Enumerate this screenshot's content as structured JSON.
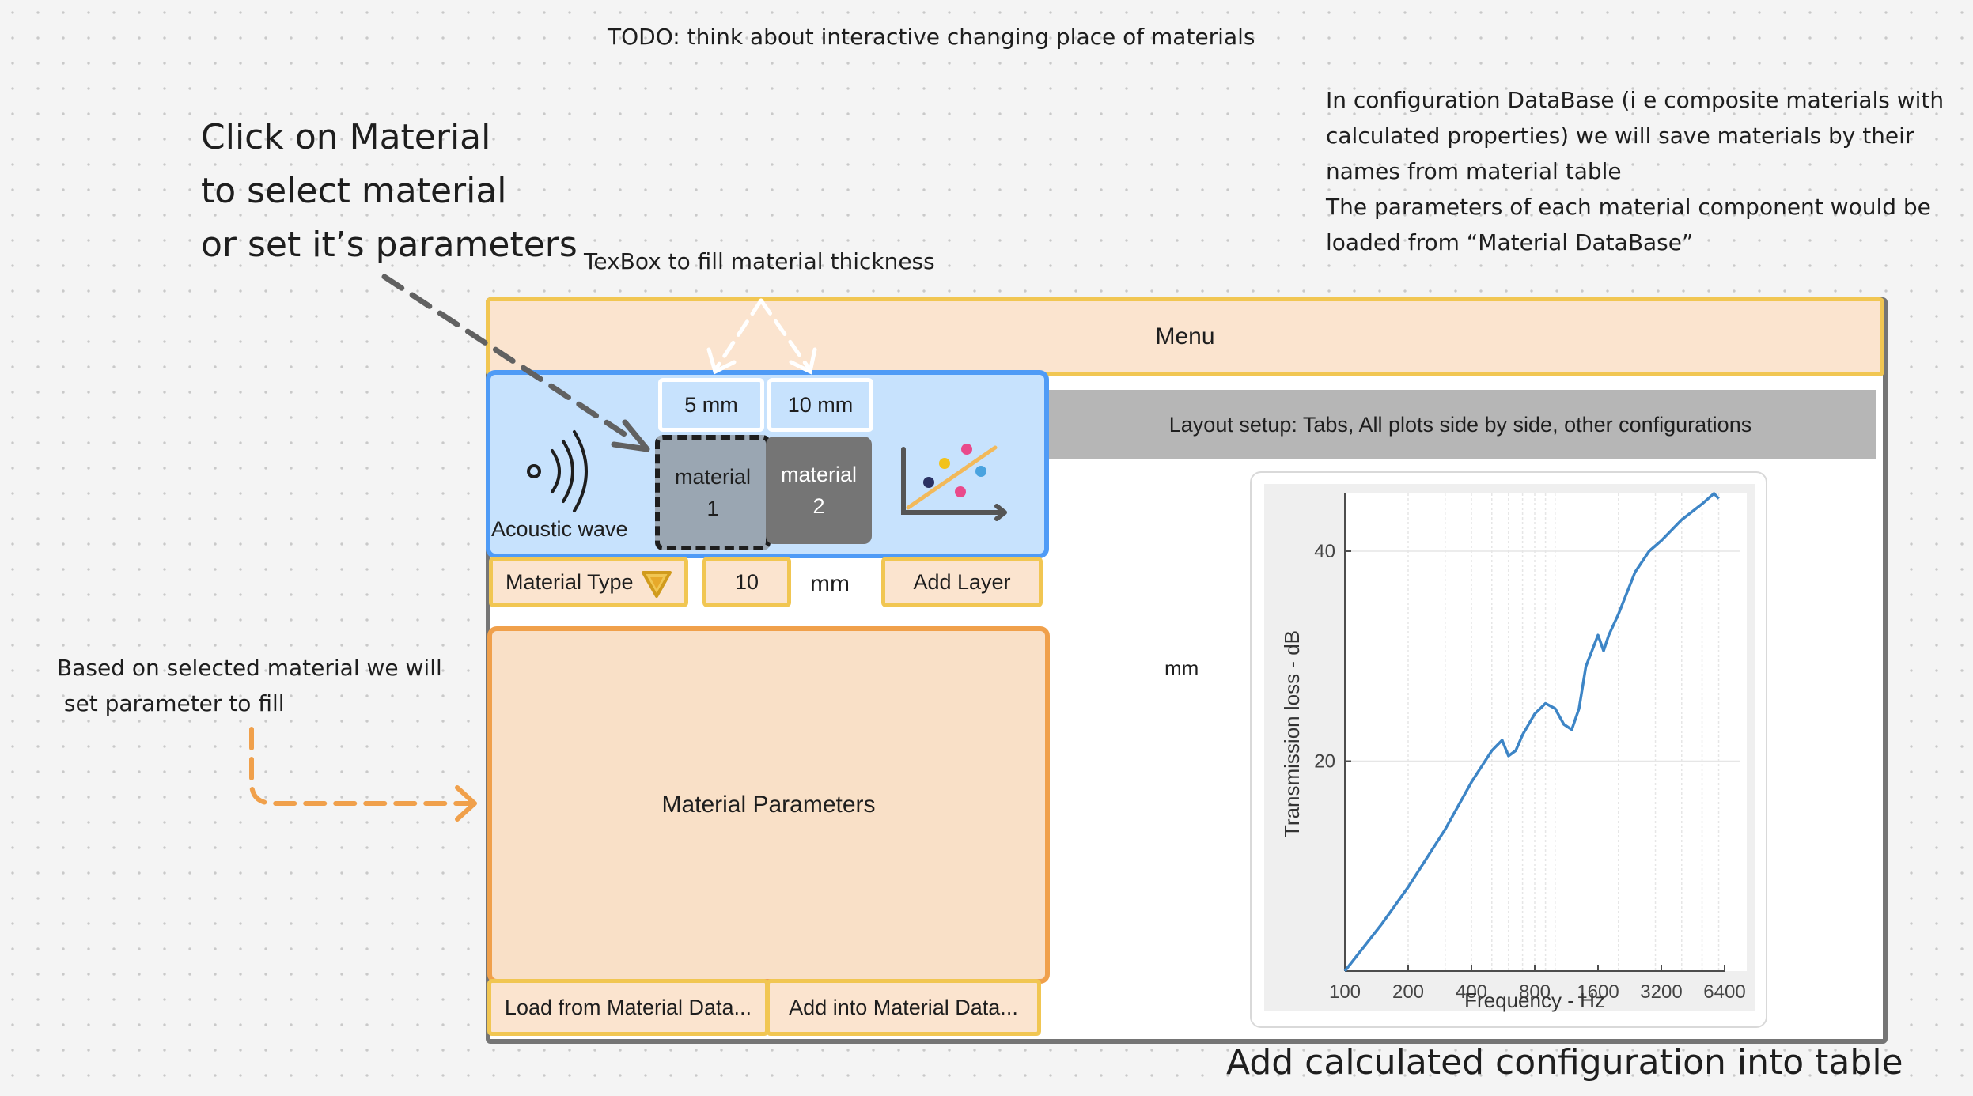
{
  "notes": {
    "todo": "TODO: think about interactive changing place of materials",
    "config_db": [
      "In configuration DataBase (i e composite materials with",
      "calculated properties) we will save materials by their",
      "names from material table",
      "The parameters of each material component would be",
      "loaded from “Material DataBase”"
    ],
    "click_material": [
      "Click on Material",
      "to select material",
      "or set it’s parameters"
    ],
    "textbox_hint": "TexBox to fill material thickness",
    "based_on": [
      "Based on selected material we will",
      " set parameter to fill"
    ],
    "add_config": "Add calculated configuration into table"
  },
  "ui": {
    "menu": "Menu",
    "layout_setup": "Layout setup: Tabs, All plots side by side, other configurations",
    "acoustic_wave": "Acoustic wave",
    "thickness_1": "5 mm",
    "thickness_2": "10 mm",
    "material_1": [
      "material",
      "1"
    ],
    "material_2": [
      "material",
      "2"
    ],
    "material_type": "Material Type",
    "thickness_value": "10",
    "unit_mm": "mm",
    "add_layer": "Add Layer",
    "material_parameters": "Material Parameters",
    "load_from_db": "Load from Material Data...",
    "add_into_db": "Add into Material Data...",
    "stray_mm": "mm"
  },
  "colors": {
    "canvas_bg": "#f4f4f4",
    "menu_fill": "#fbe4cf",
    "yellow_border": "#f1c652",
    "blue_fill": "#c7e2fd",
    "blue_border": "#4f9bf6",
    "orange_border": "#f0a04b",
    "material_1": "#9aa6b2",
    "material_2": "#757575",
    "plot_line": "#3d85c6"
  },
  "icons": [
    "sound-wave-icon",
    "chart-icon",
    "dropdown-triangle-icon"
  ],
  "chart_data": {
    "type": "line",
    "xlabel": "Frequency - Hz",
    "ylabel": "Transmission loss - dB",
    "x_scale": "log",
    "x_ticks": [
      100,
      200,
      400,
      800,
      1600,
      3200,
      6400
    ],
    "y_ticks": [
      20,
      40
    ],
    "xlim": [
      100,
      6400
    ],
    "ylim": [
      0,
      45.5
    ],
    "grid": true,
    "series": [
      {
        "x": [
          100,
          150,
          200,
          300,
          400,
          500,
          560,
          600,
          650,
          700,
          800,
          900,
          1000,
          1100,
          1200,
          1300,
          1400,
          1600,
          1700,
          1800,
          2000,
          2400,
          2800,
          3200,
          4000,
          5000,
          5700,
          6000
        ],
        "y": [
          0,
          4.5,
          8,
          13.5,
          18,
          21,
          22,
          20.5,
          21,
          22.5,
          24.5,
          25.5,
          25,
          23.5,
          23,
          25,
          29,
          32,
          30.5,
          32,
          34,
          38,
          40,
          41,
          43,
          44.5,
          45.5,
          45
        ]
      }
    ]
  }
}
